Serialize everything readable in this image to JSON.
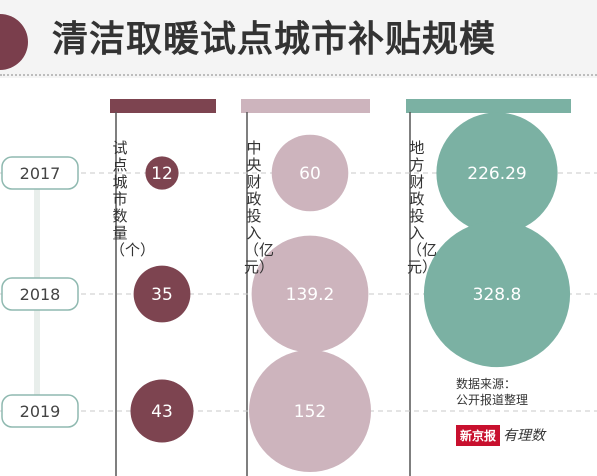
{
  "title": "清洁取暖试点城市补贴规模",
  "colors": {
    "accent": "#7a3e4c",
    "col1": "#7d4450",
    "col2": "#cdb4bd",
    "col3": "#7bb1a3",
    "year_border": "#8fb9b0"
  },
  "chart_data": {
    "type": "bubble",
    "title": "清洁取暖试点城市补贴规模",
    "categories": [
      "2017",
      "2018",
      "2019"
    ],
    "series": [
      {
        "name": "试点城市数量（个）",
        "values": [
          12,
          35,
          43
        ],
        "labels": [
          "12",
          "35",
          "43"
        ]
      },
      {
        "name": "中央财政投入（亿元）",
        "values": [
          60,
          139.2,
          152
        ],
        "labels": [
          "60",
          "139.2",
          "152"
        ]
      },
      {
        "name": "地方财政投入（亿元）",
        "values": [
          226.29,
          328.8,
          null
        ],
        "labels": [
          "226.29",
          "328.8",
          ""
        ]
      }
    ]
  },
  "source": {
    "line1": "数据来源：",
    "line2": "公开报道整理"
  },
  "logo": {
    "brand": "新京报",
    "sub": "有理数"
  }
}
